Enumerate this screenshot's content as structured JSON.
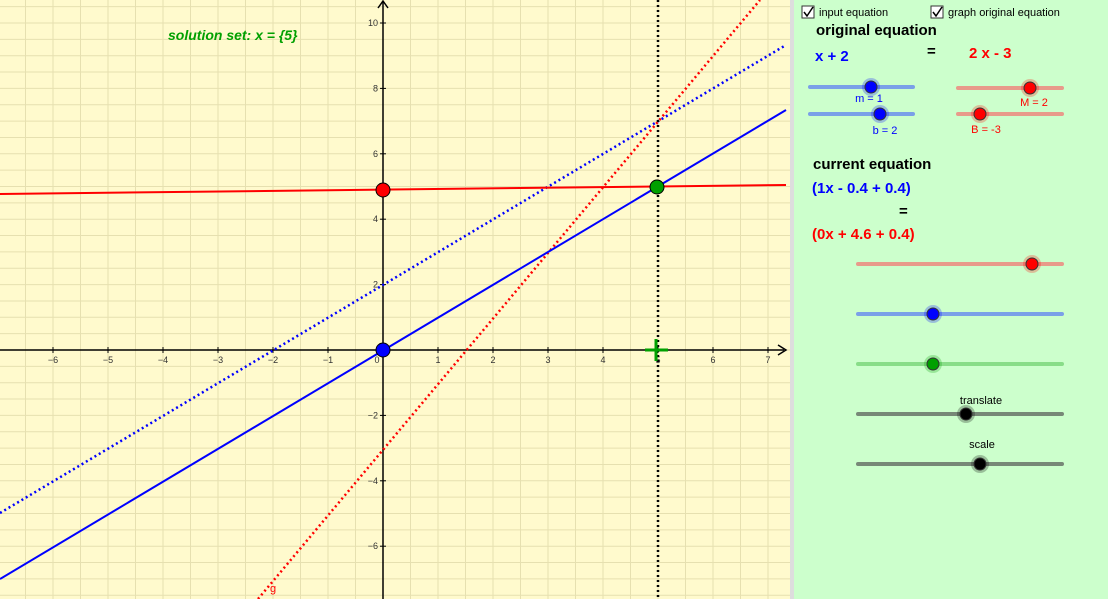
{
  "solution_text": "solution set: x = {5}",
  "graph": {
    "x_ticks": [
      {
        "value": -6,
        "label": "−6"
      },
      {
        "value": -5,
        "label": "−5"
      },
      {
        "value": -4,
        "label": "−4"
      },
      {
        "value": -3,
        "label": "−3"
      },
      {
        "value": -2,
        "label": "−2"
      },
      {
        "value": -1,
        "label": "−1"
      },
      {
        "value": 0,
        "label": "0"
      },
      {
        "value": 1,
        "label": "1"
      },
      {
        "value": 2,
        "label": "2"
      },
      {
        "value": 3,
        "label": "3"
      },
      {
        "value": 4,
        "label": "4"
      },
      {
        "value": 5,
        "label": "5"
      },
      {
        "value": 6,
        "label": "6"
      },
      {
        "value": 7,
        "label": "7"
      }
    ],
    "y_ticks": [
      {
        "value": -6,
        "label": "−6"
      },
      {
        "value": -4,
        "label": "−4"
      },
      {
        "value": -2,
        "label": "−2"
      },
      {
        "value": 2,
        "label": "2"
      },
      {
        "value": 4,
        "label": "4"
      },
      {
        "value": 6,
        "label": "6"
      },
      {
        "value": 8,
        "label": "8"
      },
      {
        "value": 10,
        "label": "10"
      }
    ],
    "curve_label": "g"
  },
  "panel": {
    "checkboxes": [
      "input equation",
      "graph original equation"
    ],
    "original_heading": "original equation",
    "original_left": "x + 2",
    "original_equals": "=",
    "original_right": "2 x - 3",
    "slider_m": "m = 1",
    "slider_b": "b = 2",
    "slider_M": "M = 2",
    "slider_B": "B = -3",
    "current_heading": "current equation",
    "current_left": "(1x - 0.4 + 0.4)",
    "current_equals": "=",
    "current_right": "(0x + 4.6 + 0.4)",
    "translate": "translate",
    "scale": "scale"
  }
}
